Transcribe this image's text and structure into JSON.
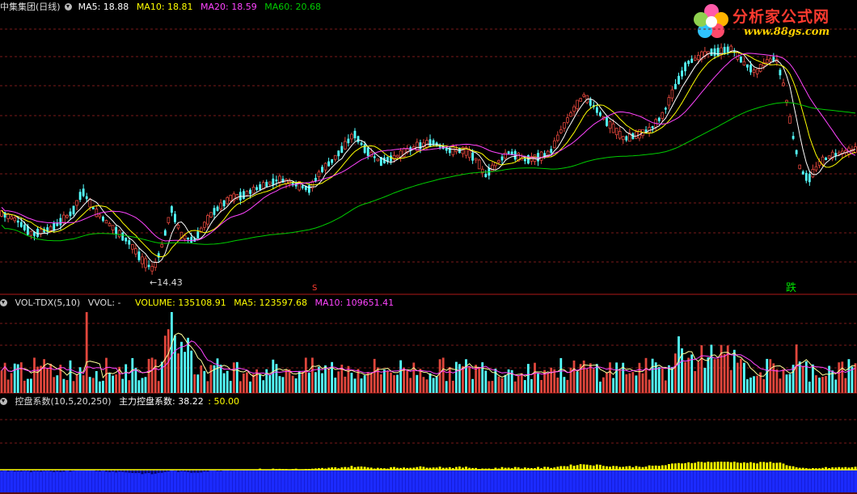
{
  "main_header": {
    "stock_name": "中集集团(日线)",
    "ma5": "MA5: 18.88",
    "ma10": "MA10: 18.81",
    "ma20": "MA20: 18.59",
    "ma60": "MA60: 20.68"
  },
  "vol_header": {
    "indicator": "VOL-TDX(5,10)",
    "vvol": "VVOL: -",
    "volume": "VOLUME: 135108.91",
    "ma5": "MA5: 123597.68",
    "ma10": "MA10: 109651.41"
  },
  "kp_header": {
    "indicator": "控盘系数(10,5,20,250)",
    "main": "主力控盘系数: 38.22",
    "other": ": 50.00"
  },
  "logo": {
    "title": "分析家公式网",
    "url": "www.88gs.com"
  },
  "annotations": {
    "low_price": "←14.43",
    "signal_s": "S",
    "signal_die": "跌"
  },
  "colors": {
    "up": "#e0463c",
    "down": "#54ffff",
    "ma5": "#ffffff",
    "ma10": "#ffff00",
    "ma20": "#ff44ff",
    "ma60": "#00cc00",
    "grid": "#7a1a1a",
    "kp_bar": "#1c2bff",
    "kp_line": "#ffff00"
  },
  "chart_data": [
    {
      "type": "candlestick",
      "title": "中集集团(日线)",
      "series": [
        {
          "name": "MA5",
          "value": 18.88
        },
        {
          "name": "MA10",
          "value": 18.81
        },
        {
          "name": "MA20",
          "value": 18.59
        },
        {
          "name": "MA60",
          "value": 20.68
        }
      ],
      "annotations": [
        {
          "text": "←14.43",
          "value": 14.43
        }
      ],
      "grid": true
    },
    {
      "type": "bar",
      "title": "VOL-TDX(5,10)",
      "series": [
        {
          "name": "VOLUME",
          "value": 135108.91
        },
        {
          "name": "MA5",
          "value": 123597.68
        },
        {
          "name": "MA10",
          "value": 109651.41
        }
      ],
      "grid": true
    },
    {
      "type": "bar",
      "title": "控盘系数(10,5,20,250)",
      "series": [
        {
          "name": "主力控盘系数",
          "value": 38.22
        },
        {
          "name": "",
          "value": 50.0
        }
      ]
    }
  ]
}
